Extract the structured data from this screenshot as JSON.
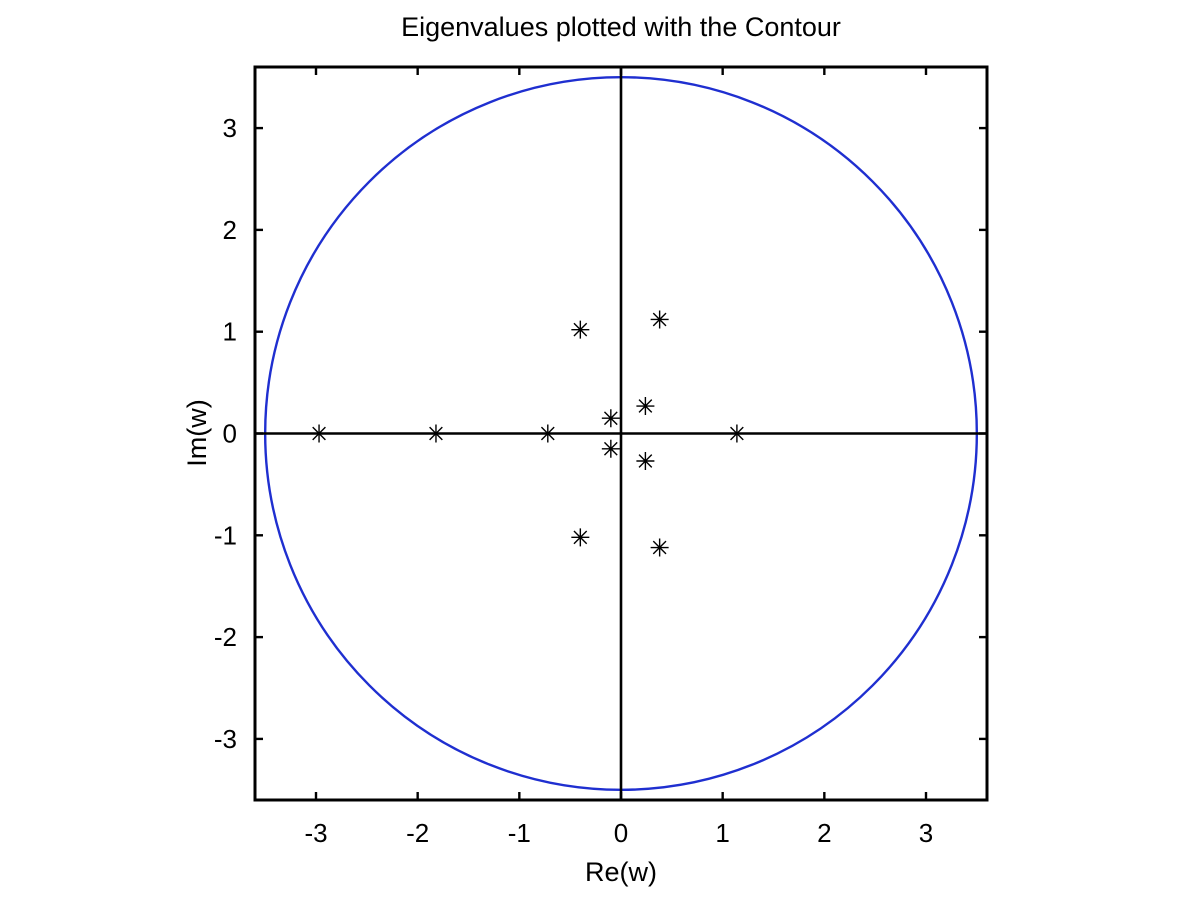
{
  "chart_data": {
    "type": "scatter",
    "title": "Eigenvalues plotted with the Contour",
    "xlabel": "Re(w)",
    "ylabel": "Im(w)",
    "xlim": [
      -3.6,
      3.6
    ],
    "ylim": [
      -3.6,
      3.6
    ],
    "xticks": [
      -3,
      -2,
      -1,
      0,
      1,
      2,
      3
    ],
    "yticks": [
      -3,
      -2,
      -1,
      0,
      1,
      2,
      3
    ],
    "grid": false,
    "axis_lines_through_origin": true,
    "contour": {
      "shape": "circle",
      "center": [
        0,
        0
      ],
      "radius": 3.5,
      "color": "#1f2fd0"
    },
    "marker": {
      "symbol": "asterisk",
      "color": "#000000"
    },
    "points": [
      {
        "x": -2.97,
        "y": 0.0
      },
      {
        "x": -1.82,
        "y": 0.0
      },
      {
        "x": -0.72,
        "y": 0.0
      },
      {
        "x": -0.4,
        "y": 1.02
      },
      {
        "x": -0.4,
        "y": -1.02
      },
      {
        "x": -0.1,
        "y": 0.15
      },
      {
        "x": -0.1,
        "y": -0.15
      },
      {
        "x": 0.24,
        "y": 0.27
      },
      {
        "x": 0.24,
        "y": -0.27
      },
      {
        "x": 0.38,
        "y": 1.12
      },
      {
        "x": 0.38,
        "y": -1.12
      },
      {
        "x": 1.14,
        "y": 0.0
      }
    ]
  }
}
